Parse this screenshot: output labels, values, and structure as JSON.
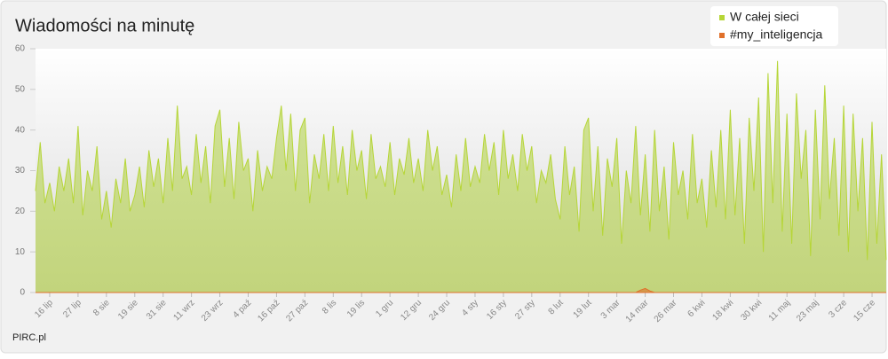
{
  "chart_data": {
    "type": "area",
    "title": "Wiadomości na minutę",
    "footer": "PIRC.pl",
    "categories": [
      null,
      null,
      null,
      "16 lip",
      null,
      null,
      null,
      null,
      null,
      "27 lip",
      null,
      null,
      null,
      null,
      null,
      "8 sie",
      null,
      null,
      null,
      null,
      null,
      "19 sie",
      null,
      null,
      null,
      null,
      null,
      "31 sie",
      null,
      null,
      null,
      null,
      null,
      "11 wrz",
      null,
      null,
      null,
      null,
      null,
      "23 wrz",
      null,
      null,
      null,
      null,
      null,
      "4 paź",
      null,
      null,
      null,
      null,
      null,
      "16 paź",
      null,
      null,
      null,
      null,
      null,
      "27 paź",
      null,
      null,
      null,
      null,
      null,
      "8 lis",
      null,
      null,
      null,
      null,
      null,
      "19 lis",
      null,
      null,
      null,
      null,
      null,
      "1 gru",
      null,
      null,
      null,
      null,
      null,
      "12 gru",
      null,
      null,
      null,
      null,
      null,
      "24 gru",
      null,
      null,
      null,
      null,
      null,
      "4 sty",
      null,
      null,
      null,
      null,
      null,
      "16 sty",
      null,
      null,
      null,
      null,
      null,
      "27 sty",
      null,
      null,
      null,
      null,
      null,
      "8 lut",
      null,
      null,
      null,
      null,
      null,
      "19 lut",
      null,
      null,
      null,
      null,
      null,
      "3 mar",
      null,
      null,
      null,
      null,
      null,
      "14 mar",
      null,
      null,
      null,
      null,
      null,
      "26 mar",
      null,
      null,
      null,
      null,
      null,
      "6 kwi",
      null,
      null,
      null,
      null,
      null,
      "18 kwi",
      null,
      null,
      null,
      null,
      null,
      "30 kwi",
      null,
      null,
      null,
      null,
      null,
      "11 maj",
      null,
      null,
      null,
      null,
      null,
      "23 maj",
      null,
      null,
      null,
      null,
      null,
      "3 cze",
      null,
      null,
      null,
      null,
      null,
      "15 cze",
      null,
      null,
      null
    ],
    "series": [
      {
        "name": "W całej sieci",
        "color": "#b6d637",
        "values": [
          25,
          37,
          22,
          27,
          20,
          31,
          25,
          33,
          22,
          41,
          19,
          30,
          25,
          36,
          18,
          25,
          16,
          28,
          22,
          33,
          20,
          24,
          31,
          21,
          35,
          26,
          33,
          22,
          38,
          25,
          46,
          28,
          31,
          24,
          39,
          27,
          36,
          22,
          41,
          45,
          26,
          38,
          23,
          42,
          30,
          33,
          20,
          35,
          25,
          31,
          28,
          38,
          46,
          30,
          44,
          25,
          40,
          43,
          22,
          34,
          28,
          39,
          25,
          41,
          27,
          36,
          24,
          40,
          30,
          35,
          23,
          39,
          28,
          31,
          26,
          37,
          24,
          33,
          29,
          38,
          27,
          33,
          25,
          40,
          30,
          36,
          24,
          29,
          21,
          34,
          25,
          38,
          26,
          31,
          27,
          39,
          30,
          37,
          24,
          40,
          28,
          34,
          25,
          39,
          30,
          36,
          22,
          30,
          27,
          34,
          23,
          18,
          36,
          24,
          31,
          15,
          40,
          43,
          20,
          36,
          14,
          33,
          26,
          38,
          12,
          30,
          22,
          41,
          19,
          34,
          15,
          40,
          20,
          31,
          13,
          37,
          24,
          30,
          18,
          39,
          22,
          28,
          16,
          35,
          21,
          40,
          18,
          45,
          19,
          38,
          12,
          43,
          25,
          48,
          10,
          54,
          22,
          57,
          15,
          44,
          12,
          49,
          28,
          40,
          9,
          45,
          18,
          51,
          23,
          38,
          14,
          46,
          10,
          44,
          20,
          38,
          8,
          42,
          12,
          34,
          8
        ]
      },
      {
        "name": "#my_inteligencja",
        "color": "#e0702a",
        "values": [
          0,
          0,
          0,
          0,
          0,
          0,
          0,
          0,
          0,
          0,
          0,
          0,
          0,
          0,
          0,
          0,
          0,
          0,
          0,
          0,
          0,
          0,
          0,
          0,
          0,
          0,
          0,
          0,
          0,
          0,
          0,
          0,
          0,
          0,
          0,
          0,
          0,
          0,
          0,
          0,
          0,
          0,
          0,
          0,
          0,
          0,
          0,
          0,
          0,
          0,
          0,
          0,
          0,
          0,
          0,
          0,
          0,
          0,
          0,
          0,
          0,
          0,
          0,
          0,
          0,
          0,
          0,
          0,
          0,
          0,
          0,
          0,
          0,
          0,
          0,
          0,
          0,
          0,
          0,
          0,
          0,
          0,
          0,
          0,
          0,
          0,
          0,
          0,
          0,
          0,
          0,
          0,
          0,
          0,
          0,
          0,
          0,
          0,
          0,
          0,
          0,
          0,
          0,
          0,
          0,
          0,
          0,
          0,
          0,
          0,
          0,
          0,
          0,
          0,
          0,
          0,
          0,
          0,
          0,
          0,
          0,
          0,
          0,
          0,
          0,
          0,
          0,
          0,
          0.6,
          1,
          0.4,
          0,
          0,
          0,
          0,
          0,
          0,
          0,
          0,
          0,
          0,
          0,
          0,
          0,
          0,
          0,
          0,
          0,
          0,
          0,
          0,
          0,
          0,
          0,
          0,
          0,
          0,
          0,
          0,
          0,
          0,
          0,
          0,
          0,
          0,
          0,
          0,
          0,
          0,
          0,
          0,
          0,
          0,
          0,
          0,
          0,
          0,
          0,
          0,
          0,
          0
        ]
      }
    ],
    "ylim": [
      0,
      60
    ],
    "yticks": [
      0,
      10,
      20,
      30,
      40,
      50,
      60
    ],
    "legend": "top-right"
  }
}
